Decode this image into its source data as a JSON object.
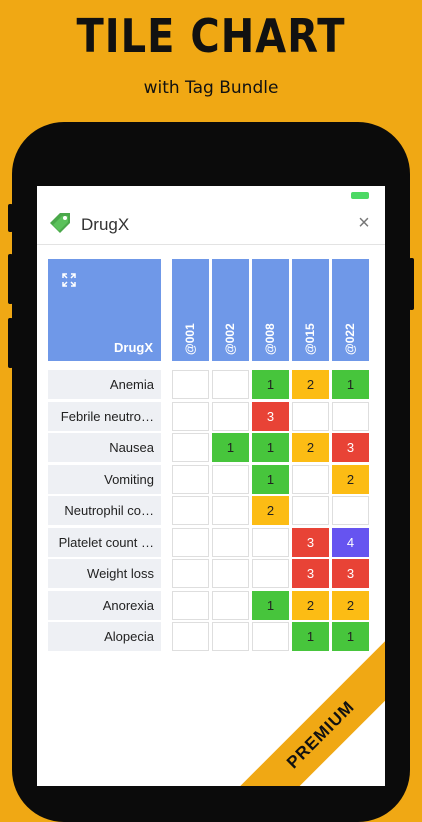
{
  "promo": {
    "title": "TILE CHART",
    "subtitle": "with Tag Bundle",
    "ribbon": "PREMIUM"
  },
  "statusbar": {
    "left": "",
    "time": ""
  },
  "navbar": {
    "title": "DrugX",
    "icon": "tag-icon",
    "close": "×"
  },
  "chart_data": {
    "type": "heatmap",
    "title": "DrugX",
    "columns": [
      "@001",
      "@002",
      "@008",
      "@015",
      "@022"
    ],
    "rows": [
      "Anemia",
      "Febrile neutro…",
      "Nausea",
      "Vomiting",
      "Neutrophil co…",
      "Platelet count …",
      "Weight loss",
      "Anorexia",
      "Alopecia"
    ],
    "values": [
      [
        null,
        null,
        1,
        2,
        1
      ],
      [
        null,
        null,
        3,
        null,
        null
      ],
      [
        null,
        1,
        1,
        2,
        3
      ],
      [
        null,
        null,
        1,
        null,
        2
      ],
      [
        null,
        null,
        2,
        null,
        null
      ],
      [
        null,
        null,
        null,
        3,
        4
      ],
      [
        null,
        null,
        null,
        3,
        3
      ],
      [
        null,
        null,
        1,
        2,
        2
      ],
      [
        null,
        null,
        null,
        1,
        1
      ]
    ],
    "grade_colors": {
      "1": "#47c53c",
      "2": "#fcbc14",
      "3": "#e84336",
      "4": "#6654f0"
    }
  }
}
